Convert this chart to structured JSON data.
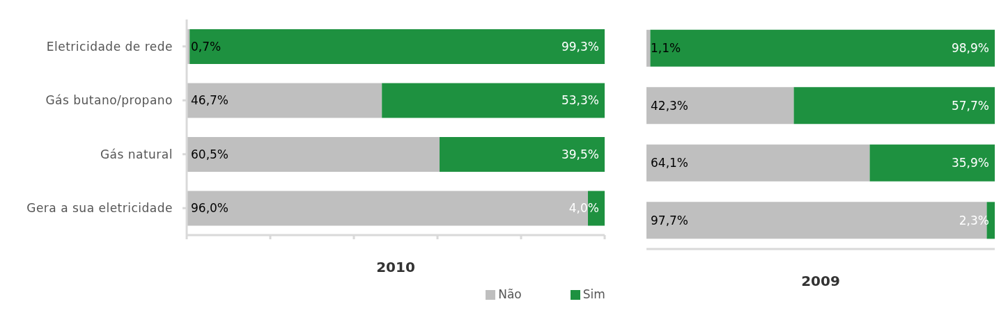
{
  "chart_data": [
    {
      "type": "bar",
      "orientation": "horizontal",
      "stacked": true,
      "xlabel": "2010",
      "categories": [
        "Eletricidade de rede",
        "Gás butano/propano",
        "Gás natural",
        "Gera a sua eletricidade"
      ],
      "series": [
        {
          "name": "Não",
          "color": "#bfbfbf",
          "values": [
            0.7,
            46.7,
            60.5,
            96.0
          ],
          "value_labels": [
            "0,7%",
            "46,7%",
            "60,5%",
            "96,0%"
          ]
        },
        {
          "name": "Sim",
          "color": "#1e9140",
          "values": [
            99.3,
            53.3,
            39.5,
            4.0
          ],
          "value_labels": [
            "99,3%",
            "53,3%",
            "39,5%",
            "4,0%"
          ]
        }
      ],
      "xlim": [
        0,
        100
      ],
      "xticks": [
        {
          "value": 0,
          "label": null
        },
        {
          "value": 20,
          "label": null
        },
        {
          "value": 40,
          "label": null
        },
        {
          "value": 60,
          "label": null
        },
        {
          "value": 80,
          "label": null
        },
        {
          "value": 100,
          "label": null
        }
      ],
      "tick_labels": "y",
      "legend": "bottom",
      "grid": false
    },
    {
      "type": "bar",
      "orientation": "horizontal",
      "stacked": true,
      "xlabel": "2009",
      "categories": [
        null,
        null,
        null,
        null
      ],
      "series": [
        {
          "color": "#bfbfbf",
          "values": [
            1.1,
            42.3,
            64.1,
            97.7
          ],
          "value_labels": [
            "1,1%",
            "42,3%",
            "64,1%",
            "97,7%"
          ]
        },
        {
          "color": "#1e9140",
          "values": [
            98.9,
            57.7,
            35.9,
            2.3
          ],
          "value_labels": [
            "98,9%",
            "57,7%",
            "35,9%",
            "2,3%"
          ]
        }
      ],
      "xlim": [
        0,
        100
      ],
      "tick_labels": false,
      "legend": false,
      "grid": false
    }
  ]
}
